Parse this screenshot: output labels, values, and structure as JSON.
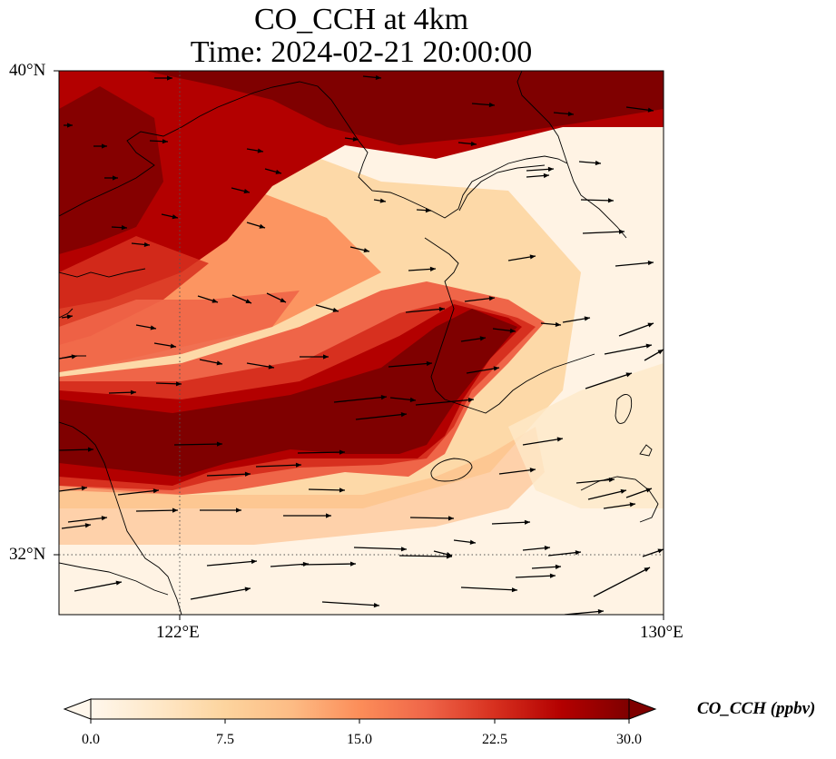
{
  "map": {
    "title_line_1": "CO_CCH at 4km",
    "title_line_2": "Time: 2024-02-21 20:00:00",
    "lat_labels": [
      "40°N",
      "32°N"
    ],
    "lon_labels": [
      "122°E",
      "130°E"
    ],
    "lat_range": [
      31,
      40
    ],
    "lon_range": [
      120,
      130
    ],
    "gridlines": "dotted at 122°E and 32°N"
  },
  "colorbar": {
    "label": "CO_CCH (ppbv)",
    "ticks": [
      "0.0",
      "7.5",
      "15.0",
      "22.5",
      "30.0"
    ],
    "range": [
      0,
      30
    ],
    "colormap": "OrRd",
    "extend": "both",
    "colors": [
      "#fff7ec",
      "#fee8c8",
      "#fdd49e",
      "#fdbb84",
      "#fc8d59",
      "#ef6548",
      "#d7301f",
      "#b30000",
      "#7f0000"
    ]
  },
  "wind_vectors": "black arrows pointing generally east to east-north-east"
}
